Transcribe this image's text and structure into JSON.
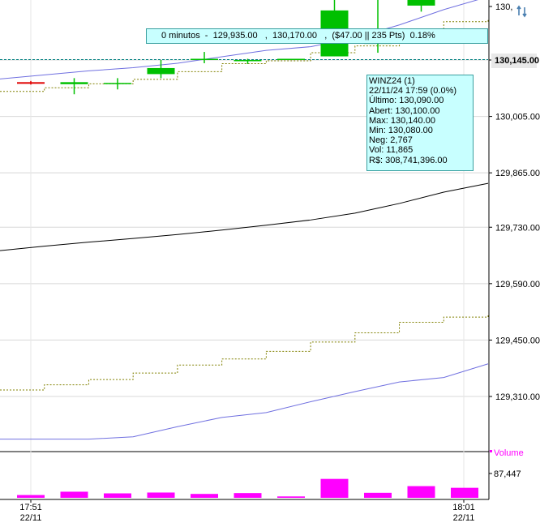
{
  "chart_data": {
    "type": "candlestick",
    "price_axis": {
      "ticks": [
        "130,145.00",
        "130,005.00",
        "129,865.00",
        "129,730.00",
        "129,590.00",
        "129,450.00",
        "129,310.00"
      ],
      "top_partial_label": "130,",
      "current_price": "130,145.00"
    },
    "volume_axis": {
      "label": "Volume",
      "tick": "87,447"
    },
    "time_axis": [
      {
        "time": "17:51",
        "date": "22/11"
      },
      {
        "time": "18:01",
        "date": "22/11"
      }
    ],
    "candles": [
      {
        "open": 130090,
        "high": 130093,
        "low": 130084,
        "close": 130086
      },
      {
        "open": 130085,
        "high": 130100,
        "low": 130060,
        "close": 130090
      },
      {
        "open": 130088,
        "high": 130100,
        "low": 130072,
        "close": 130088
      },
      {
        "open": 130110,
        "high": 130145,
        "low": 130100,
        "close": 130125
      },
      {
        "open": 130148,
        "high": 130165,
        "low": 130137,
        "close": 130148
      },
      {
        "open": 130145,
        "high": 130148,
        "low": 130135,
        "close": 130145
      },
      {
        "open": 130146,
        "high": 130148,
        "low": 130146,
        "close": 130148
      },
      {
        "open": 130154,
        "high": 130365,
        "low": 130154,
        "close": 130268
      },
      {
        "open": 130185,
        "high": 130400,
        "low": 130163,
        "close": 130188
      },
      {
        "open": 130280,
        "high": 130418,
        "low": 130265,
        "close": 130417
      },
      {
        "open": 130417,
        "high": 130417,
        "low": 130350,
        "close": 130380
      }
    ],
    "volume_bars": [
      10000,
      22000,
      16000,
      19000,
      14000,
      17000,
      5000,
      68000,
      18000,
      42000,
      36000
    ],
    "indicators": {
      "upper_band": [
        130098,
        130108,
        130118,
        130126,
        130137,
        130153,
        130169,
        130178,
        130200,
        130232,
        130270,
        130302
      ],
      "middle_line": [
        129672,
        129683,
        129693,
        129702,
        129712,
        129723,
        129735,
        129748,
        129765,
        129789,
        129817,
        129839
      ],
      "lower_band": [
        129204,
        129204,
        129204,
        129210,
        129235,
        129258,
        129270,
        129297,
        129322,
        129346,
        129357,
        129391
      ],
      "step_line_upper": [
        130067,
        130076,
        130086,
        130097,
        130116,
        130136,
        130143,
        130163,
        130180,
        130220,
        130240,
        130247
      ],
      "step_line_lower": [
        129326,
        129339,
        129352,
        129368,
        129388,
        129403,
        129422,
        129445,
        129468,
        129494,
        129507,
        129513
      ],
      "reference_price": 130146
    },
    "measurement": "0 minutos  -  129,935.00   ,  130,170.00   ,  ($47.00 || 235 Pts)  0.18%",
    "tooltip": {
      "title": "WINZ24 (1)",
      "datetime": "22/11/24 17:59 (0.0%)",
      "ultimo": "Último: 130,090.00",
      "abertura": "Abert: 130,100.00",
      "max": "Max: 130,140.00",
      "min": "Min: 130,080.00",
      "neg": "Neg: 2,767",
      "vol": "Vol: 11,865",
      "fin": "R$: 308,741,396.00"
    },
    "colors": {
      "up": "#00c000",
      "down": "#e00000",
      "bands": "#7070e0",
      "middle": "#000000",
      "steps": "#808000",
      "volume": "#ff00ff",
      "reference": "#008080"
    }
  }
}
